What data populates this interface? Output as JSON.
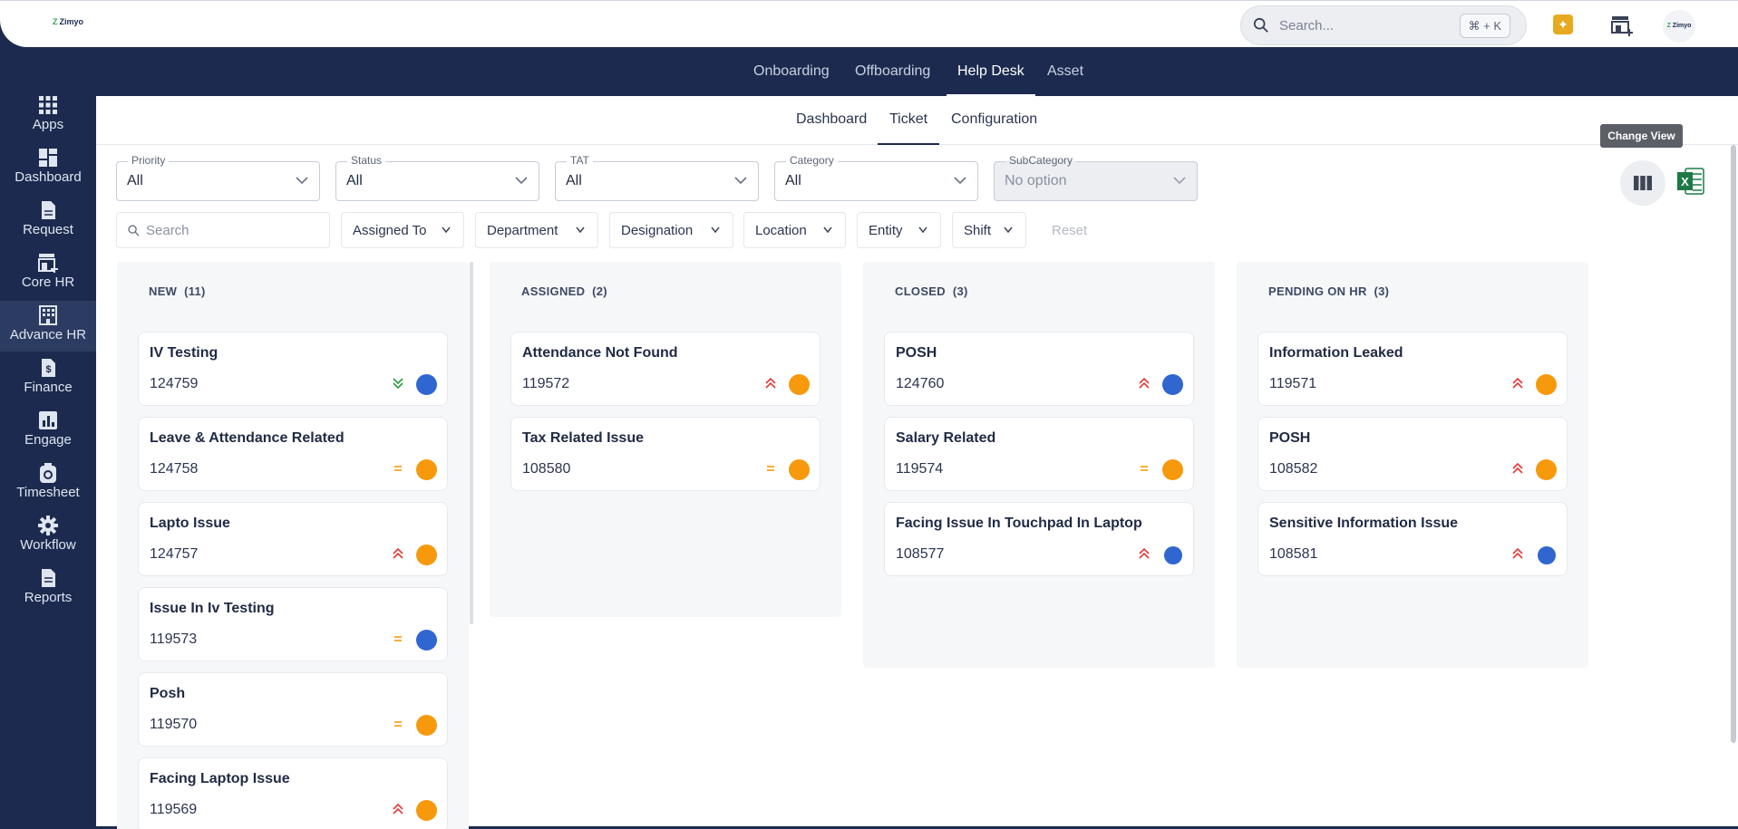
{
  "topbar": {
    "brand": "Zimyo",
    "search_placeholder": "Search...",
    "shortcut": "⌘ + K",
    "avatar_text": "Zimyo"
  },
  "modules": [
    {
      "label": "Onboarding",
      "active": false
    },
    {
      "label": "Offboarding",
      "active": false
    },
    {
      "label": "Help Desk",
      "active": true
    },
    {
      "label": "Asset",
      "active": false
    }
  ],
  "sidebar": [
    {
      "label": "Apps",
      "icon": "apps-icon"
    },
    {
      "label": "Dashboard",
      "icon": "dashboard-icon"
    },
    {
      "label": "Request",
      "icon": "request-icon"
    },
    {
      "label": "Core HR",
      "icon": "core-hr-icon"
    },
    {
      "label": "Advance HR",
      "icon": "advance-hr-icon",
      "active": true
    },
    {
      "label": "Finance",
      "icon": "finance-icon"
    },
    {
      "label": "Engage",
      "icon": "engage-icon"
    },
    {
      "label": "Timesheet",
      "icon": "timesheet-icon"
    },
    {
      "label": "Workflow",
      "icon": "workflow-icon"
    },
    {
      "label": "Reports",
      "icon": "reports-icon"
    }
  ],
  "subtabs": [
    {
      "label": "Dashboard"
    },
    {
      "label": "Ticket",
      "active": true
    },
    {
      "label": "Configuration"
    }
  ],
  "tooltip": "Change View",
  "filters": [
    {
      "label": "Priority",
      "value": "All"
    },
    {
      "label": "Status",
      "value": "All"
    },
    {
      "label": "TAT",
      "value": "All"
    },
    {
      "label": "Category",
      "value": "All"
    },
    {
      "label": "SubCategory",
      "value": "No option",
      "disabled": true
    }
  ],
  "search_placeholder": "Search",
  "quick_filters": [
    "Assigned To",
    "Department",
    "Designation",
    "Location",
    "Entity",
    "Shift"
  ],
  "reset_label": "Reset",
  "colors": {
    "navy": "#1b2a4e",
    "orange": "#f7990c",
    "blue": "#2f66d0",
    "red": "#e53935",
    "green": "#2e9b3a"
  },
  "columns": [
    {
      "title": "NEW",
      "count": "(11)",
      "cards": [
        {
          "title": "IV Testing",
          "id": "124759",
          "priority": "low",
          "dot": "blue"
        },
        {
          "title": "Leave & Attendance Related",
          "id": "124758",
          "priority": "medium",
          "dot": "orange"
        },
        {
          "title": "Lapto Issue",
          "id": "124757",
          "priority": "high",
          "dot": "orange"
        },
        {
          "title": "Issue In Iv Testing",
          "id": "119573",
          "priority": "medium",
          "dot": "blue"
        },
        {
          "title": "Posh",
          "id": "119570",
          "priority": "medium",
          "dot": "orange"
        },
        {
          "title": "Facing Laptop Issue",
          "id": "119569",
          "priority": "high",
          "dot": "orange"
        }
      ]
    },
    {
      "title": "ASSIGNED",
      "count": "(2)",
      "cards": [
        {
          "title": "Attendance Not Found",
          "id": "119572",
          "priority": "high",
          "dot": "orange"
        },
        {
          "title": "Tax Related Issue",
          "id": "108580",
          "priority": "medium",
          "dot": "orange"
        }
      ]
    },
    {
      "title": "CLOSED",
      "count": "(3)",
      "cards": [
        {
          "title": "POSH",
          "id": "124760",
          "priority": "high",
          "dot": "blue"
        },
        {
          "title": "Salary Related",
          "id": "119574",
          "priority": "medium",
          "dot": "orange"
        },
        {
          "title": "Facing Issue In Touchpad In Laptop",
          "id": "108577",
          "priority": "high",
          "dot": "bluesm"
        }
      ]
    },
    {
      "title": "PENDING ON HR",
      "count": "(3)",
      "cards": [
        {
          "title": "Information Leaked",
          "id": "119571",
          "priority": "high",
          "dot": "orange"
        },
        {
          "title": "POSH",
          "id": "108582",
          "priority": "high",
          "dot": "orange"
        },
        {
          "title": "Sensitive Information Issue",
          "id": "108581",
          "priority": "high",
          "dot": "bluesm"
        }
      ]
    }
  ]
}
